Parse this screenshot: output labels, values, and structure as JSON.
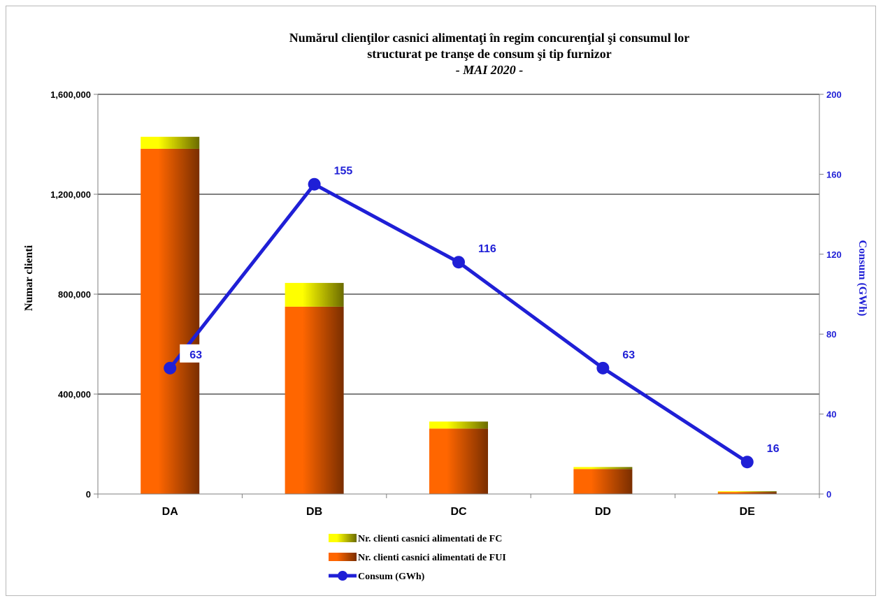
{
  "chart_data": {
    "type": "bar",
    "title_lines": [
      "Numărul clienţilor casnici alimentaţi în regim concurenţial şi consumul lor",
      "structurat pe tranşe de consum şi tip furnizor",
      "- MAI 2020 -"
    ],
    "categories": [
      "DA",
      "DB",
      "DC",
      "DD",
      "DE"
    ],
    "series": [
      {
        "name": "Nr. clienti casnici alimentati de FUI",
        "kind": "bar",
        "axis": "left",
        "stack": "clients",
        "color_light": "#ff6600",
        "color_dark": "#7a2e00",
        "values": [
          1382000,
          750000,
          262000,
          100000,
          8000
        ]
      },
      {
        "name": "Nr. clienti casnici alimentati de FC",
        "kind": "bar",
        "axis": "left",
        "stack": "clients",
        "color_light": "#ffff00",
        "color_dark": "#6b6b00",
        "values": [
          48000,
          95000,
          28000,
          8000,
          3000
        ]
      },
      {
        "name": "Consum (GWh)",
        "kind": "line",
        "axis": "right",
        "color": "#1f1fd6",
        "values": [
          63,
          155,
          116,
          63,
          16
        ]
      }
    ],
    "y_left": {
      "label": "Numar clienti",
      "range": [
        0,
        1600000
      ],
      "ticks": [
        "0",
        "400,000",
        "800,000",
        "1,200,000",
        "1,600,000"
      ],
      "tick_values": [
        0,
        400000,
        800000,
        1200000,
        1600000
      ]
    },
    "y_right": {
      "label": "Consum (GWh)",
      "range": [
        0,
        200
      ],
      "ticks": [
        "0",
        "40",
        "80",
        "120",
        "160",
        "200"
      ],
      "tick_values": [
        0,
        40,
        80,
        120,
        160,
        200
      ]
    },
    "data_labels": [
      "63",
      "155",
      "116",
      "63",
      "16"
    ],
    "gridlines": "horizontal",
    "legend_position": "bottom",
    "legend_order": [
      1,
      0,
      2
    ]
  }
}
